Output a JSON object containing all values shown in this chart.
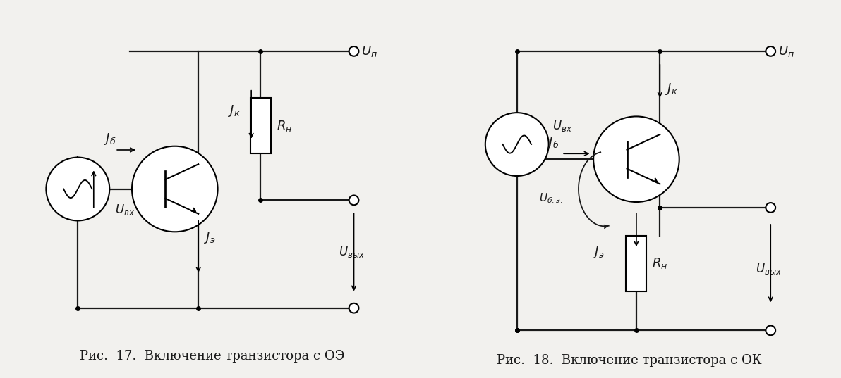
{
  "bg_color": "#f2f1ee",
  "line_color": "#1a1a1a",
  "fig1_caption": "Рис.  17.  Включение транзистора с ОЭ",
  "fig2_caption": "Рис.  18.  Включение транзистора с ОК",
  "caption_fontsize": 13,
  "label_fontsize": 13
}
